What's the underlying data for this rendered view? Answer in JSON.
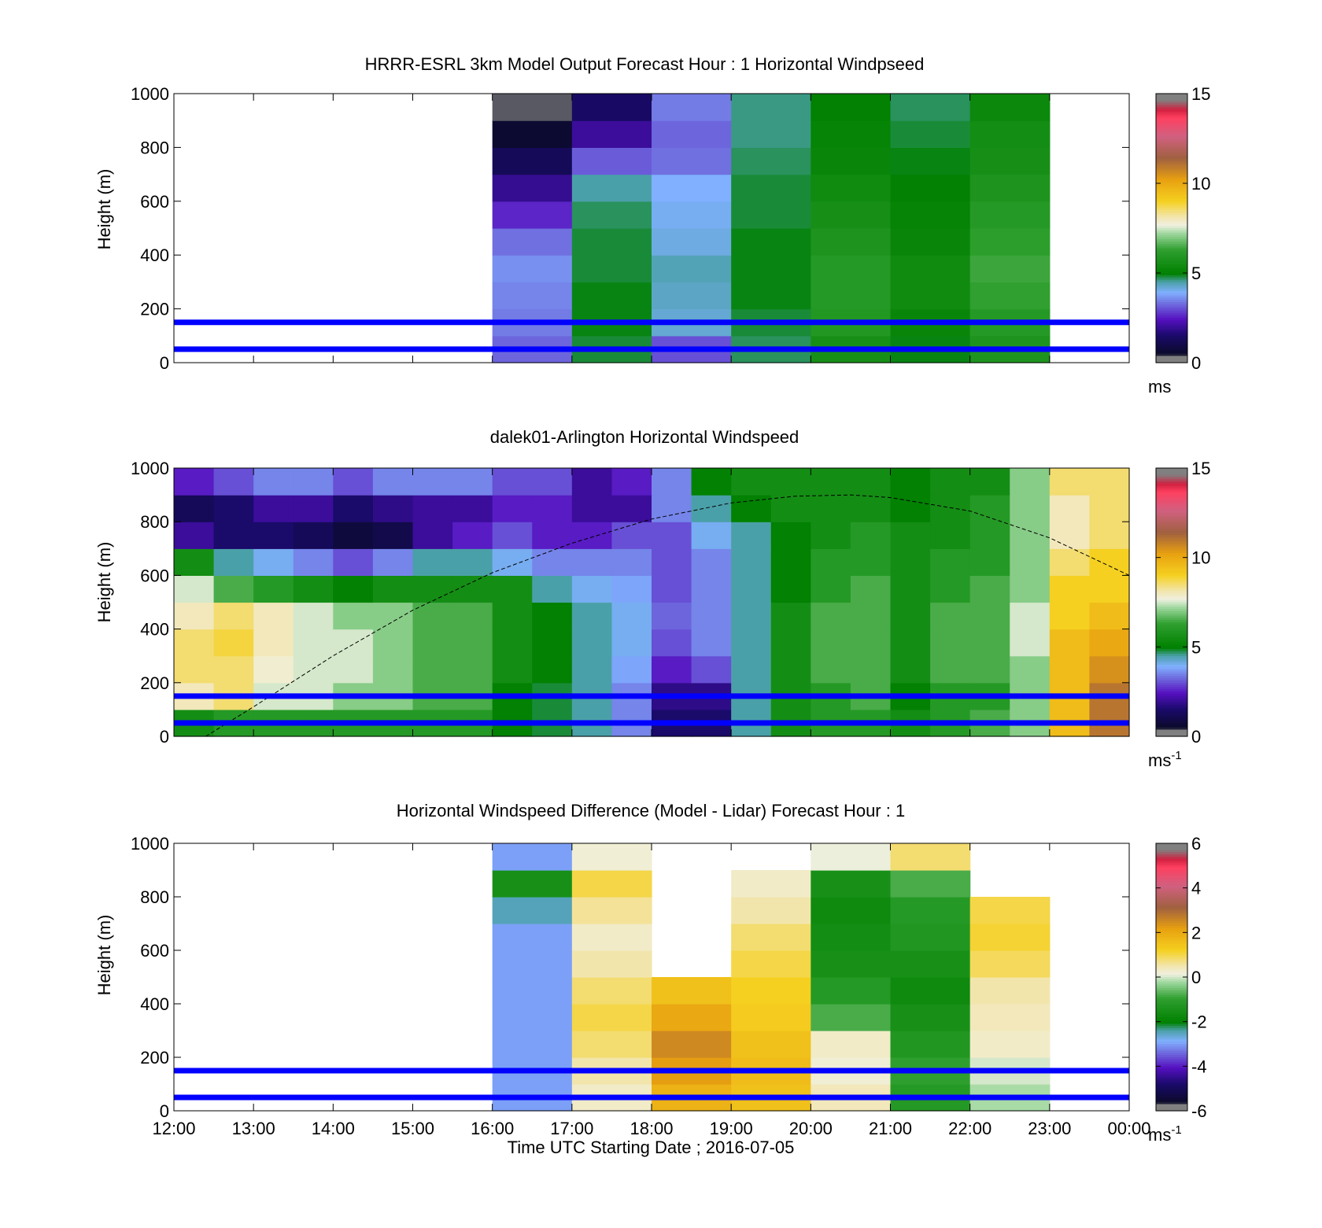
{
  "chart_data": [
    {
      "type": "heatmap",
      "title": "HRRR-ESRL 3km Model Output   Forecast Hour : 1 Horizontal Windpseed",
      "ylabel": "Height (m)",
      "xlabel": "",
      "ylim": [
        0,
        1000
      ],
      "yticks": [
        "0",
        "200",
        "400",
        "600",
        "800",
        "1000"
      ],
      "xticks_hours": [
        12,
        13,
        14,
        15,
        16,
        17,
        18,
        19,
        20,
        21,
        22,
        23,
        24
      ],
      "xtick_labels": [],
      "reference_lines_m": [
        50,
        150
      ],
      "colorbar": {
        "min": 0,
        "max": 15,
        "ticks": [
          "0",
          "5",
          "10",
          "15"
        ],
        "unit": "ms",
        "unit_sup": ""
      },
      "x_hours": [
        16,
        17,
        18,
        19,
        20,
        21,
        22
      ],
      "y_heights_m": [
        0,
        100,
        200,
        300,
        400,
        500,
        600,
        700,
        800,
        900
      ],
      "values": [
        [
          3.2,
          4.8,
          3.0,
          4.7,
          5.6,
          4.9,
          5.8
        ],
        [
          3.4,
          4.9,
          4.2,
          4.8,
          5.9,
          5.2,
          6.0
        ],
        [
          3.5,
          4.9,
          4.3,
          4.9,
          6.0,
          5.4,
          6.3
        ],
        [
          3.6,
          4.8,
          4.4,
          4.9,
          6.0,
          5.4,
          6.4
        ],
        [
          3.3,
          4.8,
          4.1,
          4.9,
          5.8,
          5.2,
          6.2
        ],
        [
          2.6,
          4.7,
          4.0,
          4.8,
          5.6,
          5.1,
          6.0
        ],
        [
          1.9,
          4.5,
          3.9,
          4.8,
          5.4,
          5.0,
          5.8
        ],
        [
          1.2,
          3.1,
          3.3,
          4.7,
          5.2,
          4.9,
          5.6
        ],
        [
          0.6,
          2.0,
          3.2,
          4.6,
          5.1,
          4.8,
          5.5
        ],
        [
          0.4,
          1.4,
          3.4,
          4.6,
          5.0,
          4.7,
          5.3
        ]
      ]
    },
    {
      "type": "heatmap",
      "title": "dalek01-Arlington  Horizontal Windspeed",
      "ylabel": "Height (m)",
      "xlabel": "",
      "ylim": [
        0,
        1000
      ],
      "yticks": [
        "0",
        "200",
        "400",
        "600",
        "800",
        "1000"
      ],
      "xticks_hours": [
        12,
        13,
        14,
        15,
        16,
        17,
        18,
        19,
        20,
        21,
        22,
        23,
        24
      ],
      "xtick_labels": [],
      "reference_lines_m": [
        50,
        150
      ],
      "colorbar": {
        "min": 0,
        "max": 15,
        "ticks": [
          "0",
          "5",
          "10",
          "15"
        ],
        "unit": "ms",
        "unit_sup": "-1"
      },
      "x_hours": [
        12.0,
        12.5,
        13.0,
        13.5,
        14.0,
        14.5,
        15.0,
        15.5,
        16.0,
        16.5,
        17.0,
        17.5,
        18.0,
        18.5,
        19.0,
        19.5,
        20.0,
        20.5,
        21.0,
        21.5,
        22.0,
        22.5,
        23.0,
        23.5
      ],
      "y_heights_m": [
        0,
        100,
        200,
        300,
        400,
        500,
        600,
        700,
        800,
        900
      ],
      "values": [
        [
          5.5,
          6.0,
          6.0,
          6.0,
          6.0,
          6.0,
          6.0,
          6.0,
          5.0,
          4.8,
          4.5,
          3.5,
          1.5,
          1.5,
          4.5,
          5.5,
          6.0,
          6.0,
          5.5,
          6.0,
          6.5,
          7.0,
          9.5,
          11.0
        ],
        [
          8.0,
          8.5,
          7.5,
          7.5,
          7.0,
          7.0,
          6.5,
          6.5,
          5.0,
          4.8,
          4.5,
          3.5,
          1.8,
          1.8,
          4.5,
          5.5,
          6.0,
          6.5,
          5.0,
          6.0,
          6.0,
          7.0,
          9.5,
          11.0
        ],
        [
          8.5,
          8.5,
          7.8,
          7.5,
          7.5,
          7.0,
          6.5,
          6.5,
          5.5,
          5.0,
          4.5,
          3.8,
          2.5,
          3.0,
          4.5,
          5.5,
          6.5,
          6.5,
          5.5,
          6.5,
          6.5,
          7.0,
          9.5,
          10.5
        ],
        [
          8.5,
          8.8,
          8.0,
          7.5,
          7.5,
          7.0,
          6.5,
          6.5,
          5.5,
          5.0,
          4.5,
          4.0,
          3.0,
          3.5,
          4.5,
          5.5,
          6.5,
          6.5,
          5.5,
          6.5,
          6.5,
          7.5,
          9.5,
          10.0
        ],
        [
          8.0,
          8.5,
          8.0,
          7.5,
          7.0,
          7.0,
          6.5,
          6.5,
          5.5,
          5.0,
          4.5,
          4.0,
          3.2,
          3.5,
          4.5,
          5.5,
          6.5,
          6.5,
          5.5,
          6.5,
          6.5,
          7.5,
          9.0,
          9.5
        ],
        [
          7.5,
          6.5,
          6.0,
          5.5,
          5.0,
          5.5,
          5.5,
          5.5,
          5.5,
          4.5,
          4.0,
          3.8,
          3.0,
          3.5,
          4.5,
          5.0,
          6.0,
          6.5,
          5.5,
          6.0,
          6.5,
          7.0,
          9.0,
          9.0
        ],
        [
          5.5,
          4.5,
          4.0,
          3.5,
          3.0,
          3.5,
          4.5,
          4.5,
          4.0,
          3.5,
          3.5,
          3.5,
          3.0,
          3.5,
          4.5,
          5.0,
          6.0,
          6.0,
          5.5,
          6.0,
          6.0,
          7.0,
          8.5,
          9.0
        ],
        [
          2.0,
          1.5,
          1.5,
          1.2,
          0.8,
          1.0,
          2.0,
          2.5,
          3.0,
          2.5,
          2.5,
          3.0,
          3.0,
          4.0,
          4.5,
          5.0,
          5.5,
          6.0,
          5.5,
          5.5,
          6.0,
          7.0,
          8.0,
          8.5
        ],
        [
          1.2,
          1.5,
          2.0,
          2.0,
          1.5,
          1.8,
          2.0,
          2.0,
          2.5,
          2.5,
          2.0,
          2.0,
          3.5,
          4.5,
          5.0,
          5.5,
          5.5,
          5.5,
          5.0,
          5.5,
          6.0,
          7.0,
          8.0,
          8.5
        ],
        [
          2.5,
          3.0,
          3.5,
          3.5,
          3.0,
          3.5,
          3.5,
          3.5,
          3.0,
          3.0,
          2.0,
          2.5,
          3.5,
          5.0,
          5.5,
          5.5,
          5.5,
          5.5,
          5.0,
          5.5,
          5.5,
          7.0,
          8.5,
          8.5
        ]
      ],
      "curve_x_hours": [
        12.4,
        13.0,
        14.0,
        15.0,
        16.0,
        17.0,
        18.0,
        19.0,
        19.8,
        20.5,
        21.0,
        22.0,
        23.0,
        24.0
      ],
      "curve_y_m": [
        0,
        110,
        300,
        470,
        610,
        720,
        810,
        870,
        895,
        900,
        890,
        840,
        740,
        600
      ]
    },
    {
      "type": "heatmap",
      "title": "Horizontal Windspeed Difference (Model - Lidar) Forecast Hour : 1",
      "ylabel": "Height (m)",
      "xlabel": "Time UTC  Starting Date ; 2016-07-05",
      "ylim": [
        0,
        1000
      ],
      "yticks": [
        "0",
        "200",
        "400",
        "600",
        "800",
        "1000"
      ],
      "xticks_hours": [
        12,
        13,
        14,
        15,
        16,
        17,
        18,
        19,
        20,
        21,
        22,
        23,
        24
      ],
      "xtick_labels": [
        "12:00",
        "13:00",
        "14:00",
        "15:00",
        "16:00",
        "17:00",
        "18:00",
        "19:00",
        "20:00",
        "21:00",
        "22:00",
        "23:00",
        "00:00"
      ],
      "reference_lines_m": [
        50,
        150
      ],
      "colorbar": {
        "min": -6,
        "max": 6,
        "ticks": [
          "-6",
          "-4",
          "-2",
          "0",
          "2",
          "4",
          "6"
        ],
        "unit": "ms",
        "unit_sup": "-1"
      },
      "x_hours": [
        16,
        17,
        18,
        19,
        20,
        21,
        22
      ],
      "y_heights_m": [
        0,
        100,
        200,
        300,
        400,
        500,
        600,
        700,
        800,
        900
      ],
      "values": [
        [
          -3.0,
          0.3,
          1.8,
          1.5,
          0.4,
          -1.2,
          -0.2
        ],
        [
          -3.0,
          0.5,
          2.2,
          1.6,
          0.2,
          -1.0,
          0.0
        ],
        [
          -3.0,
          0.8,
          2.5,
          1.5,
          0.3,
          -1.3,
          0.3
        ],
        [
          -3.0,
          1.0,
          2.0,
          1.3,
          -0.8,
          -1.5,
          0.4
        ],
        [
          -3.0,
          0.8,
          1.5,
          1.2,
          -1.2,
          -1.7,
          0.5
        ],
        [
          -3.0,
          0.5,
          null,
          1.0,
          -1.5,
          -1.5,
          0.9
        ],
        [
          -3.0,
          0.3,
          null,
          0.8,
          -1.6,
          -1.3,
          1.1
        ],
        [
          -2.5,
          0.6,
          null,
          0.5,
          -1.7,
          -1.2,
          1.0
        ],
        [
          -1.5,
          1.0,
          null,
          0.3,
          -1.5,
          -0.8,
          null
        ],
        [
          -3.0,
          0.2,
          null,
          null,
          0.1,
          0.8,
          null
        ]
      ]
    }
  ]
}
